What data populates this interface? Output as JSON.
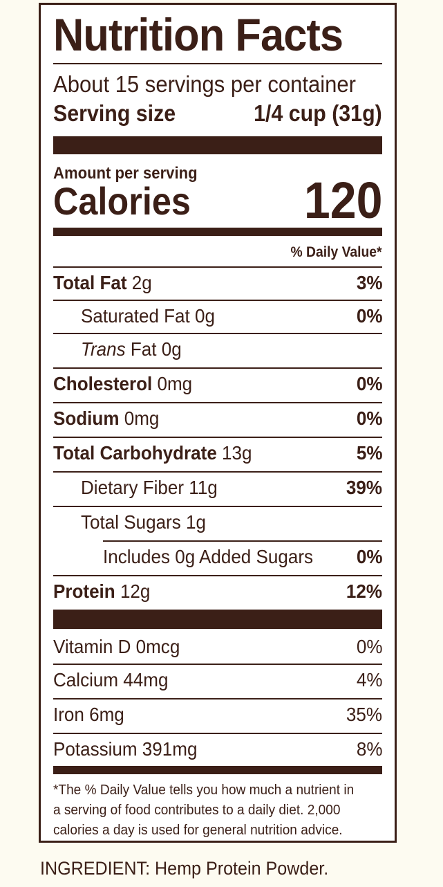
{
  "label": {
    "title": "Nutrition Facts",
    "servings_per_container": "About 15 servings per container",
    "serving_size_label": "Serving size",
    "serving_size_value": "1/4 cup (31g)",
    "amount_per_serving": "Amount per serving",
    "calories_label": "Calories",
    "calories_value": "120",
    "dv_header": "% Daily Value*",
    "nutrients": [
      {
        "name": "Total Fat",
        "amount": " 2g",
        "dv": "3%"
      },
      {
        "name": "Saturated Fat 0g",
        "dv": "0%"
      },
      {
        "name_italic": "Trans",
        "name": " Fat 0g"
      },
      {
        "name": "Cholesterol",
        "amount": " 0mg",
        "dv": "0%"
      },
      {
        "name": "Sodium",
        "amount": " 0mg",
        "dv": "0%"
      },
      {
        "name": "Total Carbohydrate",
        "amount": " 13g",
        "dv": "5%"
      },
      {
        "name": "Dietary Fiber 11g",
        "dv": "39%"
      },
      {
        "name": "Total Sugars 1g"
      },
      {
        "name": "Includes 0g Added Sugars",
        "dv": "0%"
      },
      {
        "name": "Protein",
        "amount": " 12g",
        "dv": "12%"
      }
    ],
    "vitamins": [
      {
        "name": "Vitamin D 0mcg",
        "dv": "0%"
      },
      {
        "name": "Calcium 44mg",
        "dv": "4%"
      },
      {
        "name": "Iron 6mg",
        "dv": "35%"
      },
      {
        "name": "Potassium 391mg",
        "dv": "8%"
      }
    ],
    "footnote_lines": [
      "*The % Daily Value tells you how much a nutrient in",
      "a serving of food contributes to a daily diet. 2,000",
      "calories a day is used for general nutrition advice."
    ]
  },
  "ingredient": "INGREDIENT: Hemp Protein Powder."
}
